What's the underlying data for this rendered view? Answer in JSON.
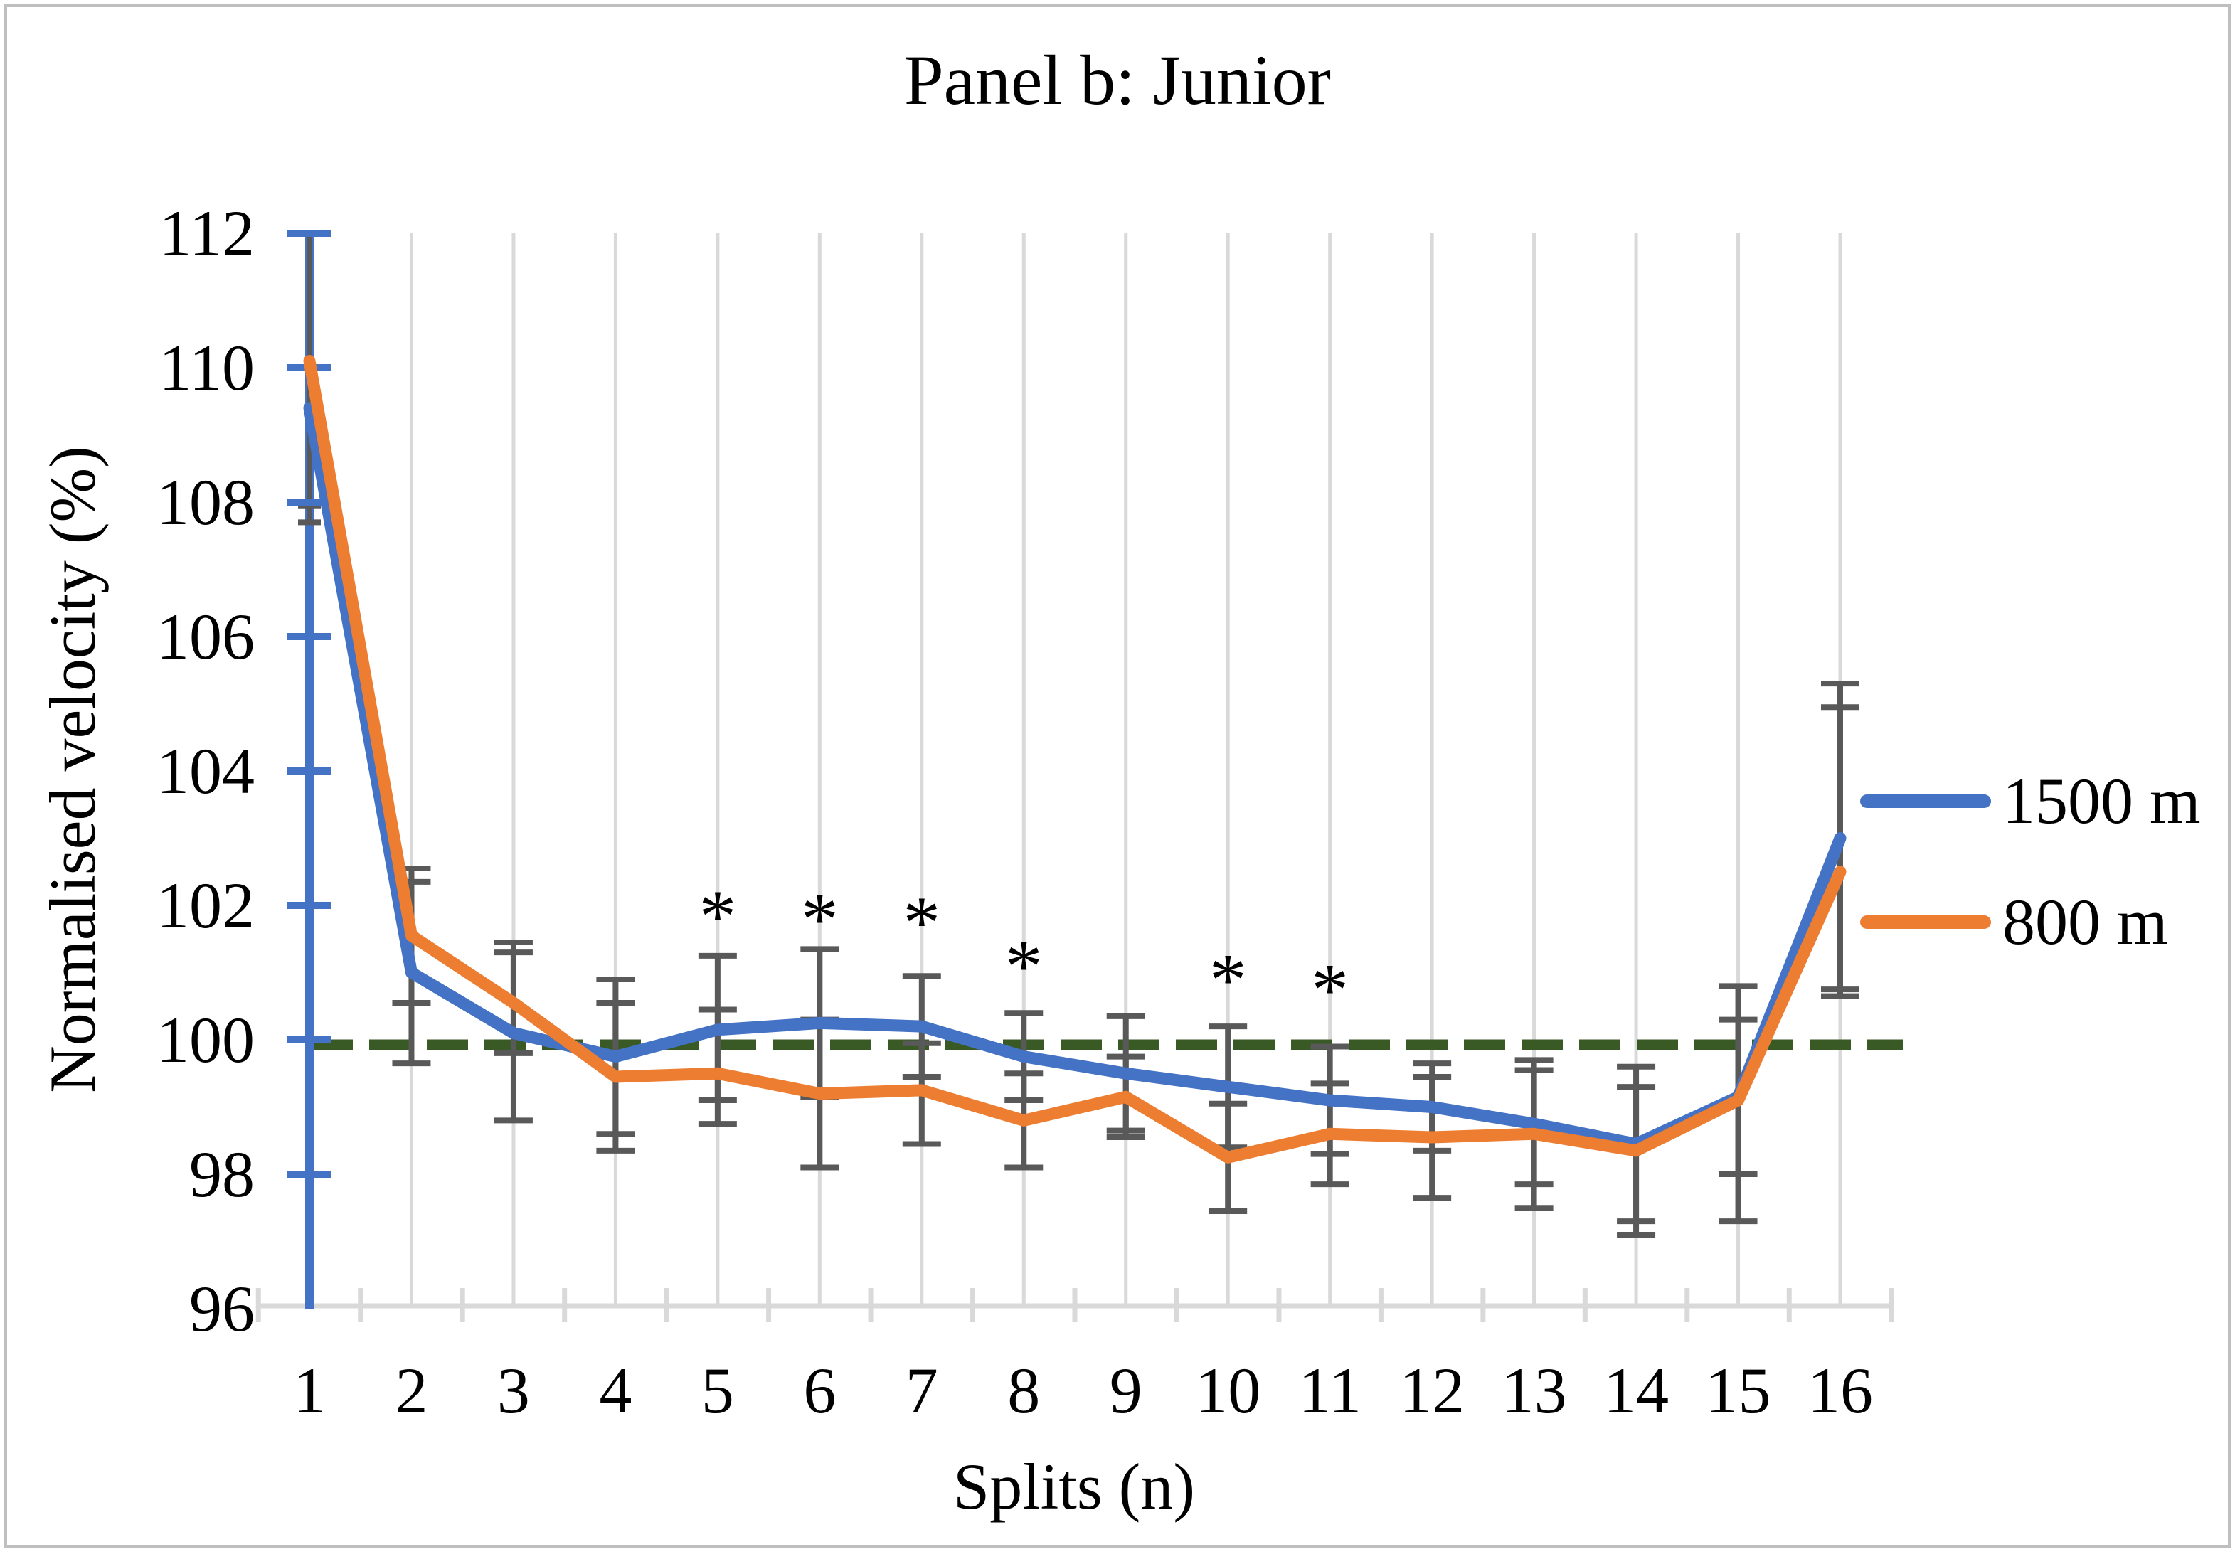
{
  "figure": {
    "border_color": "#BFBFBF",
    "background_color": "#FFFFFF"
  },
  "chart_data": {
    "type": "line",
    "title": "Panel b: Junior",
    "xlabel": "Splits (n)",
    "ylabel": "Normalised velocity (%)",
    "x_categories": [
      "1",
      "2",
      "3",
      "4",
      "5",
      "6",
      "7",
      "8",
      "9",
      "10",
      "11",
      "12",
      "13",
      "14",
      "15",
      "16"
    ],
    "ylim": [
      96,
      112
    ],
    "yticks": [
      96,
      98,
      100,
      102,
      104,
      106,
      108,
      110,
      112
    ],
    "grid": "vertical-gridlines-on",
    "legend_position": "right",
    "baseline": {
      "value": 100,
      "color": "#3A5A25",
      "style": "dashed"
    },
    "error_bar_color": "#595959",
    "axis_colors": {
      "y_axis": "#4472C4",
      "x_axis": "#D9D9D9",
      "gridline": "#D9D9D9"
    },
    "series": [
      {
        "name": "1500 m",
        "color": "#4472C4",
        "values": [
          109.4,
          101.0,
          100.1,
          99.75,
          100.15,
          100.25,
          100.2,
          99.75,
          99.5,
          99.3,
          99.1,
          99.0,
          98.75,
          98.45,
          99.15,
          103.0
        ],
        "error_low": [
          96.0,
          99.65,
          98.8,
          98.6,
          99.1,
          99.15,
          99.45,
          99.1,
          98.65,
          98.4,
          98.3,
          98.35,
          97.85,
          97.3,
          98.0,
          100.75
        ],
        "error_high": [
          112.0,
          102.35,
          101.45,
          100.9,
          101.25,
          101.35,
          100.95,
          100.4,
          100.35,
          100.2,
          99.9,
          99.65,
          99.55,
          99.6,
          100.3,
          105.3
        ]
      },
      {
        "name": "800 m",
        "color": "#ED7D31",
        "values": [
          110.1,
          101.55,
          100.55,
          99.45,
          99.5,
          99.2,
          99.25,
          98.8,
          99.15,
          98.25,
          98.6,
          98.55,
          98.6,
          98.35,
          99.1,
          102.5
        ],
        "error_low": [
          107.7,
          100.55,
          99.8,
          98.35,
          98.75,
          98.1,
          98.45,
          98.1,
          98.55,
          97.45,
          97.85,
          97.65,
          97.5,
          97.1,
          97.3,
          100.65
        ],
        "error_high": [
          112.3,
          102.55,
          101.3,
          100.55,
          100.45,
          100.3,
          99.95,
          99.5,
          99.75,
          99.05,
          99.35,
          99.45,
          99.7,
          99.3,
          100.8,
          104.95
        ]
      }
    ],
    "extra_caps": [
      {
        "series_index": 1,
        "split_index": 0,
        "value": 107.95
      }
    ],
    "significance_markers": {
      "symbol": "*",
      "markers": [
        {
          "split": 5,
          "y": 102.05
        },
        {
          "split": 6,
          "y": 102.0
        },
        {
          "split": 7,
          "y": 101.95
        },
        {
          "split": 8,
          "y": 101.3
        },
        {
          "split": 10,
          "y": 101.1
        },
        {
          "split": 11,
          "y": 100.95
        }
      ]
    }
  }
}
